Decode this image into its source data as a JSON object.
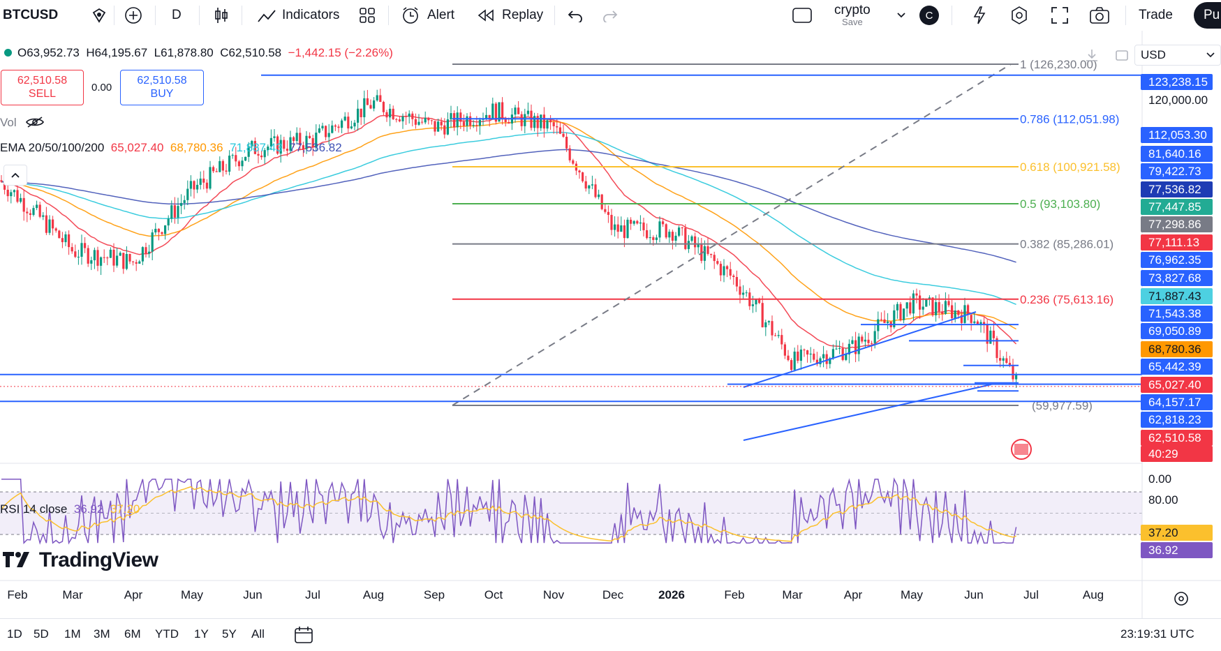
{
  "toolbar": {
    "symbol": "BTCUSD",
    "interval": "D",
    "indicators": "Indicators",
    "alert": "Alert",
    "replay": "Replay",
    "layout_name": "crypto",
    "layout_sub": "Save",
    "avatar": "C",
    "trade": "Trade",
    "publish": "Pu"
  },
  "ohlc": {
    "o": "O63,952.73",
    "h": "H64,195.67",
    "l": "L61,878.80",
    "c": "C62,510.58",
    "chg": "−1,442.15 (−2.26%)"
  },
  "trade_buttons": {
    "sell_price": "62,510.58",
    "sell_label": "SELL",
    "spread": "0.00",
    "buy_price": "62,510.58",
    "buy_label": "BUY"
  },
  "vol_label": "Vol",
  "ema_legend": {
    "label": "EMA 20/50/100/200",
    "v20": "65,027.40",
    "v50": "68,780.36",
    "v100": "71,887.43",
    "v200": "77,536.82"
  },
  "currency": "USD",
  "rsi_legend": {
    "label": "RSI 14 close",
    "v1": "36.92",
    "v2": "37.20"
  },
  "logo": "TradingView",
  "clock": "23:19:31 UTC",
  "ranges": [
    "1D",
    "5D",
    "1M",
    "3M",
    "6M",
    "YTD",
    "1Y",
    "5Y",
    "All"
  ],
  "colors": {
    "up": "#089981",
    "down": "#f23645",
    "blue": "#2962ff",
    "ema20": "#f23645",
    "ema50": "#ff9800",
    "ema100": "#26c6da",
    "ema200": "#3f51b5",
    "rsi": "#7e57c2",
    "rsi_ma": "#fbc02d"
  },
  "fib_levels": [
    {
      "label": "1 (126,230.00)",
      "color": "#787b86"
    },
    {
      "label": "0.786 (112,051.98)",
      "color": "#2962ff"
    },
    {
      "label": "0.618 (100,921.58)",
      "color": "#fbc02d"
    },
    {
      "label": "0.5 (93,103.80)",
      "color": "#4caf50"
    },
    {
      "label": "0.382 (85,286.01)",
      "color": "#787b86"
    },
    {
      "label": "0.236 (75,613.16)",
      "color": "#f23645"
    },
    {
      "label": "(59,977.59)",
      "color": "#787b86"
    }
  ],
  "price_labels": [
    {
      "text": "123,238.15",
      "bg": "#2962ff",
      "fg": "#ffffff"
    },
    {
      "text": "120,000.00",
      "bg": "",
      "fg": "#131722"
    },
    {
      "text": "112,053.30",
      "bg": "#2962ff",
      "fg": "#ffffff"
    },
    {
      "text": "81,640.16",
      "bg": "#2962ff",
      "fg": "#ffffff"
    },
    {
      "text": "79,422.73",
      "bg": "#2962ff",
      "fg": "#ffffff"
    },
    {
      "text": "77,536.82",
      "bg": "#1e3cb4",
      "fg": "#ffffff"
    },
    {
      "text": "77,447.85",
      "bg": "#22ab94",
      "fg": "#ffffff"
    },
    {
      "text": "77,298.86",
      "bg": "#787b86",
      "fg": "#ffffff"
    },
    {
      "text": "77,111.13",
      "bg": "#f23645",
      "fg": "#ffffff"
    },
    {
      "text": "76,962.35",
      "bg": "#2962ff",
      "fg": "#ffffff"
    },
    {
      "text": "73,827.68",
      "bg": "#2962ff",
      "fg": "#ffffff"
    },
    {
      "text": "71,887.43",
      "bg": "#4dd0e1",
      "fg": "#131722"
    },
    {
      "text": "71,543.38",
      "bg": "#2962ff",
      "fg": "#ffffff"
    },
    {
      "text": "69,050.89",
      "bg": "#2962ff",
      "fg": "#ffffff"
    },
    {
      "text": "68,780.36",
      "bg": "#ff9800",
      "fg": "#131722"
    },
    {
      "text": "65,442.39",
      "bg": "#2962ff",
      "fg": "#ffffff"
    },
    {
      "text": "65,027.40",
      "bg": "#f23645",
      "fg": "#ffffff"
    },
    {
      "text": "64,157.17",
      "bg": "#2962ff",
      "fg": "#ffffff"
    },
    {
      "text": "62,818.23",
      "bg": "#2962ff",
      "fg": "#ffffff"
    },
    {
      "text": "62,510.58",
      "bg": "#f23645",
      "fg": "#ffffff"
    },
    {
      "text": "40:29",
      "bg": "#f23645",
      "fg": "#ffffff"
    },
    {
      "text": "0.00",
      "bg": "",
      "fg": "#131722"
    }
  ],
  "rsi_axis": [
    {
      "text": "80.00",
      "bg": "",
      "fg": "#131722"
    },
    {
      "text": "37.20",
      "bg": "#fbc02d",
      "fg": "#131722"
    },
    {
      "text": "36.92",
      "bg": "#7e57c2",
      "fg": "#ffffff"
    }
  ],
  "chart_data": {
    "type": "candlestick",
    "symbol": "BTCUSD",
    "interval": "D",
    "x_ticks": [
      "Feb",
      "Mar",
      "Apr",
      "May",
      "Jun",
      "Jul",
      "Aug",
      "Sep",
      "Oct",
      "Nov",
      "Dec",
      "2026",
      "Feb",
      "Mar",
      "Apr",
      "May",
      "Jun",
      "Jul",
      "Aug"
    ],
    "ohlc_last": {
      "open": 63952.73,
      "high": 64195.67,
      "low": 61878.8,
      "close": 62510.58,
      "change": -1442.15,
      "change_pct": -2.26
    },
    "approx_closes_monthly": [
      {
        "x": "Feb",
        "y": 98000
      },
      {
        "x": "Mar",
        "y": 84000
      },
      {
        "x": "Apr",
        "y": 82000
      },
      {
        "x": "May",
        "y": 96000
      },
      {
        "x": "Jun",
        "y": 105000
      },
      {
        "x": "Jul",
        "y": 107000
      },
      {
        "x": "Aug",
        "y": 116000
      },
      {
        "x": "Sep",
        "y": 110000
      },
      {
        "x": "Oct",
        "y": 114000
      },
      {
        "x": "Nov",
        "y": 110000
      },
      {
        "x": "Dec",
        "y": 88000
      },
      {
        "x": "2026",
        "y": 88000
      },
      {
        "x": "Feb",
        "y": 79000
      },
      {
        "x": "Mar",
        "y": 66000
      },
      {
        "x": "Apr",
        "y": 68000
      },
      {
        "x": "May",
        "y": 75000
      },
      {
        "x": "Jun",
        "y": 73000
      },
      {
        "x": "Jun-end",
        "y": 62510.58
      }
    ],
    "ema": {
      "ema20": 65027.4,
      "ema50": 68780.36,
      "ema100": 71887.43,
      "ema200": 77536.82
    },
    "fibonacci": [
      {
        "ratio": 1,
        "price": 126230.0
      },
      {
        "ratio": 0.786,
        "price": 112051.98
      },
      {
        "ratio": 0.618,
        "price": 100921.58
      },
      {
        "ratio": 0.5,
        "price": 93103.8
      },
      {
        "ratio": 0.382,
        "price": 85286.01
      },
      {
        "ratio": 0.236,
        "price": 75613.16
      },
      {
        "ratio": 0,
        "price": 59977.59
      }
    ],
    "horizontal_lines": [
      123238.15,
      112053.3,
      64157.17,
      62818.23
    ],
    "rsi": {
      "length": 14,
      "source": "close",
      "value": 36.92,
      "ma": 37.2,
      "upper": 70,
      "lower": 30
    }
  }
}
